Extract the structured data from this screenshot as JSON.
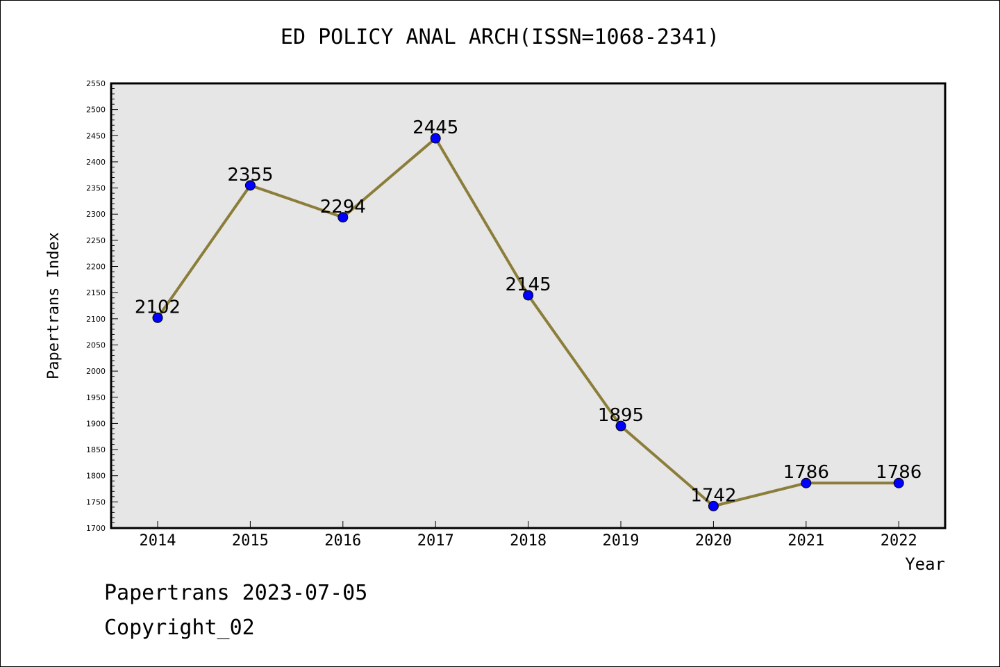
{
  "chart_data": {
    "type": "line",
    "title": "ED POLICY ANAL ARCH(ISSN=1068-2341)",
    "xlabel": "Year",
    "ylabel": "Papertrans Index",
    "categories": [
      "2014",
      "2015",
      "2016",
      "2017",
      "2018",
      "2019",
      "2020",
      "2021",
      "2022"
    ],
    "series": [
      {
        "values": [
          2102,
          2355,
          2294,
          2445,
          2145,
          1895,
          1742,
          1786,
          1786
        ]
      }
    ],
    "data_labels": [
      "2102",
      "2355",
      "2294",
      "2445",
      "2145",
      "1895",
      "1742",
      "1786",
      "1786"
    ],
    "ylim": [
      1700,
      2550
    ],
    "yticks": [
      "1700",
      "1750",
      "1800",
      "1850",
      "1900",
      "1950",
      "2000",
      "2050",
      "2100",
      "2150",
      "2200",
      "2250",
      "2300",
      "2350",
      "2400",
      "2450",
      "2500",
      "2550"
    ],
    "grid": false,
    "line_color": "#8b7d3a",
    "marker_color": "#0000ff",
    "plot_background": "#e6e6e6"
  },
  "footer": {
    "line1": "Papertrans 2023-07-05",
    "line2": "Copyright_02"
  }
}
